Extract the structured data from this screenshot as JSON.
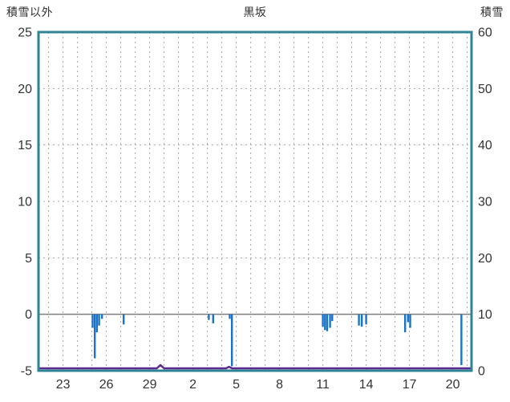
{
  "header": {
    "left_axis_title": "積雪以外",
    "title": "黒坂",
    "right_axis_title": "積雪"
  },
  "chart_data": {
    "type": "bar",
    "title": "黒坂",
    "left_axis": {
      "title": "積雪以外",
      "min": -5,
      "max": 25,
      "ticks": [
        25,
        20,
        15,
        10,
        5,
        0,
        -5
      ]
    },
    "right_axis": {
      "title": "積雪",
      "min": 0,
      "max": 60,
      "ticks": [
        60,
        50,
        40,
        30,
        20,
        10,
        0
      ]
    },
    "x_axis": {
      "domain": [
        -1.7,
        28.3
      ],
      "grid_start": -1,
      "grid_end": 28,
      "tick_labels": [
        "23",
        "26",
        "29",
        "2",
        "5",
        "8",
        "11",
        "14",
        "17",
        "20"
      ],
      "tick_positions": [
        0,
        3,
        6,
        9,
        12,
        15,
        18,
        21,
        24,
        27
      ]
    },
    "grid": {
      "vertical": "dashed daily lines",
      "horizontal": "dashed every 5 units, solid at 0"
    },
    "colors": {
      "frame": "#2e8495",
      "grid": "#a8a8a8",
      "zero_line": "#7d7d7d",
      "bar": "#1a73c9",
      "snow_line": "#5b2b8f",
      "text": "#333333"
    },
    "series": [
      {
        "name": "precipitation-bars",
        "type": "bar",
        "axis": "left",
        "color": "#1a73c9",
        "points": [
          {
            "x": 2.05,
            "y": -1.2
          },
          {
            "x": 2.2,
            "y": -3.9
          },
          {
            "x": 2.35,
            "y": -1.6
          },
          {
            "x": 2.5,
            "y": -1.0
          },
          {
            "x": 2.7,
            "y": -0.4
          },
          {
            "x": 4.2,
            "y": -0.9
          },
          {
            "x": 10.1,
            "y": -0.5
          },
          {
            "x": 10.4,
            "y": -0.8
          },
          {
            "x": 11.55,
            "y": -0.4
          },
          {
            "x": 11.7,
            "y": -4.6
          },
          {
            "x": 18.0,
            "y": -1.1
          },
          {
            "x": 18.15,
            "y": -1.4
          },
          {
            "x": 18.3,
            "y": -1.5
          },
          {
            "x": 18.5,
            "y": -1.2
          },
          {
            "x": 18.65,
            "y": -0.6
          },
          {
            "x": 20.5,
            "y": -1.0
          },
          {
            "x": 20.7,
            "y": -1.1
          },
          {
            "x": 21.0,
            "y": -0.9
          },
          {
            "x": 23.7,
            "y": -1.6
          },
          {
            "x": 23.9,
            "y": -0.7
          },
          {
            "x": 24.05,
            "y": -1.2
          },
          {
            "x": 27.6,
            "y": -4.5
          }
        ]
      },
      {
        "name": "snow-depth-line",
        "type": "line",
        "axis": "right",
        "color": "#5b2b8f",
        "points": [
          {
            "x": -1.7,
            "y": 0
          },
          {
            "x": 6.5,
            "y": 0
          },
          {
            "x": 6.75,
            "y": 1.0
          },
          {
            "x": 7.0,
            "y": 0
          },
          {
            "x": 11.3,
            "y": 0
          },
          {
            "x": 11.5,
            "y": 0.7
          },
          {
            "x": 11.7,
            "y": 0
          },
          {
            "x": 28.3,
            "y": 0
          }
        ]
      }
    ]
  }
}
